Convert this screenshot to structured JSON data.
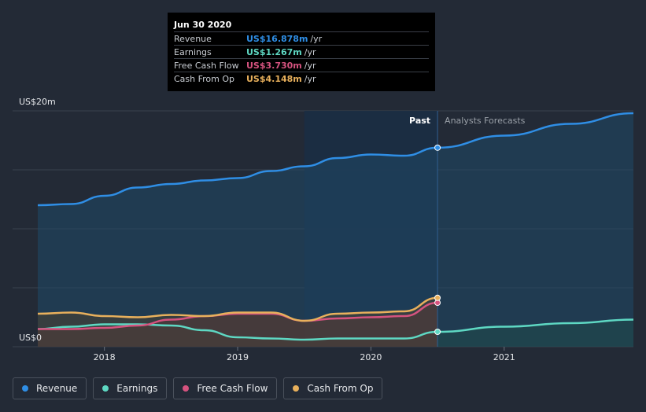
{
  "chart_data": {
    "type": "area",
    "y_max_label": "US$20m",
    "y_min_label": "US$0",
    "ylim": [
      0,
      20
    ],
    "xlim": [
      2017.5,
      2021.97
    ],
    "x_ticks": [
      {
        "value": 2018,
        "label": "2018"
      },
      {
        "value": 2019,
        "label": "2019"
      },
      {
        "value": 2020,
        "label": "2020"
      },
      {
        "value": 2021,
        "label": "2021"
      }
    ],
    "gridlines": [
      0,
      5,
      10,
      15,
      20
    ],
    "highlight_range": [
      2019.5,
      2020.5
    ],
    "divider": 2020.5,
    "past_label": "Past",
    "forecast_label": "Analysts Forecasts",
    "series": [
      {
        "name": "Revenue",
        "key": "revenue",
        "color": "#2f8ee5",
        "fill": "#1f4868",
        "marker": 16.878,
        "past": [
          [
            2017.5,
            12.0
          ],
          [
            2017.75,
            12.1
          ],
          [
            2018.0,
            12.8
          ],
          [
            2018.25,
            13.5
          ],
          [
            2018.5,
            13.8
          ],
          [
            2018.75,
            14.1
          ],
          [
            2019.0,
            14.3
          ],
          [
            2019.25,
            14.9
          ],
          [
            2019.5,
            15.3
          ],
          [
            2019.75,
            16.0
          ],
          [
            2020.0,
            16.3
          ],
          [
            2020.25,
            16.2
          ],
          [
            2020.5,
            16.878
          ]
        ],
        "forecast": [
          [
            2020.5,
            16.878
          ],
          [
            2021.0,
            17.9
          ],
          [
            2021.5,
            18.9
          ],
          [
            2021.97,
            19.8
          ]
        ]
      },
      {
        "name": "Earnings",
        "key": "earnings",
        "color": "#5ed8c3",
        "fill": "#1f4a4a",
        "marker": 1.267,
        "past": [
          [
            2017.5,
            1.5
          ],
          [
            2017.75,
            1.7
          ],
          [
            2018.0,
            1.9
          ],
          [
            2018.25,
            1.9
          ],
          [
            2018.5,
            1.8
          ],
          [
            2018.75,
            1.4
          ],
          [
            2019.0,
            0.8
          ],
          [
            2019.25,
            0.7
          ],
          [
            2019.5,
            0.6
          ],
          [
            2019.75,
            0.7
          ],
          [
            2020.0,
            0.7
          ],
          [
            2020.25,
            0.7
          ],
          [
            2020.5,
            1.267
          ]
        ],
        "forecast": [
          [
            2020.5,
            1.267
          ],
          [
            2021.0,
            1.7
          ],
          [
            2021.5,
            2.0
          ],
          [
            2021.97,
            2.3
          ]
        ]
      },
      {
        "name": "Free Cash Flow",
        "key": "fcf",
        "color": "#d5537f",
        "fill": "#5a2c40",
        "marker": 3.73,
        "past": [
          [
            2017.5,
            1.5
          ],
          [
            2017.75,
            1.5
          ],
          [
            2018.0,
            1.6
          ],
          [
            2018.25,
            1.8
          ],
          [
            2018.5,
            2.3
          ],
          [
            2018.75,
            2.6
          ],
          [
            2019.0,
            2.8
          ],
          [
            2019.25,
            2.8
          ],
          [
            2019.5,
            2.2
          ],
          [
            2019.75,
            2.4
          ],
          [
            2020.0,
            2.5
          ],
          [
            2020.25,
            2.6
          ],
          [
            2020.5,
            3.73
          ]
        ],
        "forecast": []
      },
      {
        "name": "Cash From Op",
        "key": "cfo",
        "color": "#e8b05c",
        "fill": "#4a4232",
        "marker": 4.148,
        "past": [
          [
            2017.5,
            2.8
          ],
          [
            2017.75,
            2.9
          ],
          [
            2018.0,
            2.6
          ],
          [
            2018.25,
            2.5
          ],
          [
            2018.5,
            2.7
          ],
          [
            2018.75,
            2.6
          ],
          [
            2019.0,
            2.9
          ],
          [
            2019.25,
            2.9
          ],
          [
            2019.5,
            2.2
          ],
          [
            2019.75,
            2.8
          ],
          [
            2020.0,
            2.9
          ],
          [
            2020.25,
            3.0
          ],
          [
            2020.5,
            4.148
          ]
        ],
        "forecast": []
      }
    ]
  },
  "tooltip": {
    "date": "Jun 30 2020",
    "unit": "/yr",
    "rows": [
      {
        "label": "Revenue",
        "value": "US$16.878m",
        "color": "#2f8ee5"
      },
      {
        "label": "Earnings",
        "value": "US$1.267m",
        "color": "#5ed8c3"
      },
      {
        "label": "Free Cash Flow",
        "value": "US$3.730m",
        "color": "#d5537f"
      },
      {
        "label": "Cash From Op",
        "value": "US$4.148m",
        "color": "#e8b05c"
      }
    ]
  },
  "legend": [
    {
      "label": "Revenue",
      "color": "#2f8ee5"
    },
    {
      "label": "Earnings",
      "color": "#5ed8c3"
    },
    {
      "label": "Free Cash Flow",
      "color": "#d5537f"
    },
    {
      "label": "Cash From Op",
      "color": "#e8b05c"
    }
  ]
}
